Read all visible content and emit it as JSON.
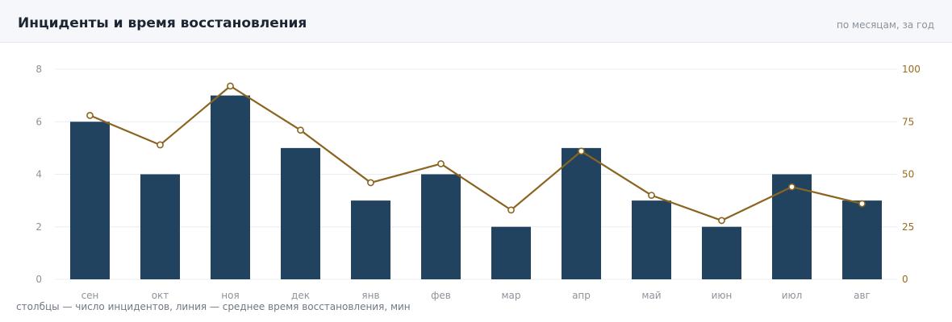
{
  "header": {
    "title": "Инциденты и время восстановления",
    "subtitle": "по месяцам, за год"
  },
  "caption": "столбцы — число инцидентов, линия — среднее время восстановления, мин",
  "colors": {
    "bar": "#21435f",
    "line": "#8b6420",
    "grid": "#e9edf1",
    "right_axis": "#9a6b1c"
  },
  "chart_data": {
    "type": "bar",
    "categories": [
      "сен",
      "окт",
      "ноя",
      "дек",
      "янв",
      "фев",
      "мар",
      "апр",
      "май",
      "июн",
      "июл",
      "авг"
    ],
    "series": [
      {
        "type": "bar",
        "axis": "left",
        "values": [
          6,
          4,
          7,
          5,
          3,
          4,
          2,
          5,
          3,
          2,
          4,
          3
        ]
      },
      {
        "type": "line",
        "axis": "right",
        "values": [
          78,
          64,
          92,
          71,
          46,
          55,
          33,
          61,
          40,
          28,
          44,
          36
        ]
      }
    ],
    "y_left": {
      "ylim": [
        0,
        8
      ],
      "ticks": [
        "0",
        "2",
        "4",
        "6",
        "8"
      ]
    },
    "y_right": {
      "ylim": [
        0,
        100
      ],
      "ticks": [
        "0",
        "25",
        "50",
        "75",
        "100"
      ]
    },
    "grid": true,
    "legend": "none"
  }
}
